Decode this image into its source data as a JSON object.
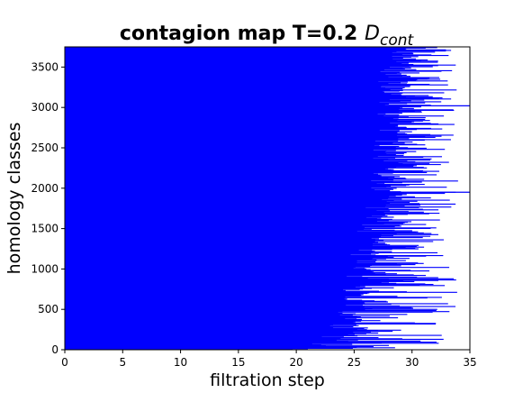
{
  "chart_data": {
    "type": "barcode",
    "title": "contagion map T=0.2",
    "title_math": "D",
    "title_math_sub": "cont",
    "xlabel": "filtration step",
    "ylabel": "homology classes",
    "xlim": [
      0,
      35
    ],
    "ylim": [
      0,
      3750
    ],
    "xticks": [
      0,
      5,
      10,
      15,
      20,
      25,
      30,
      35
    ],
    "yticks": [
      0,
      500,
      1000,
      1500,
      2000,
      2500,
      3000,
      3500
    ],
    "xtick_labels": [
      "0",
      "5",
      "10",
      "15",
      "20",
      "25",
      "30",
      "35"
    ],
    "ytick_labels": [
      "0",
      "500",
      "1000",
      "1500",
      "2000",
      "2500",
      "3000",
      "3500"
    ],
    "bar_color": "#0000ff",
    "bar_start": 0,
    "num_classes": 3750,
    "bar_end_profile": [
      {
        "class_index": 0,
        "death": 21
      },
      {
        "class_index": 150,
        "death": 24
      },
      {
        "class_index": 300,
        "death": 25
      },
      {
        "class_index": 500,
        "death": 25.5
      },
      {
        "class_index": 800,
        "death": 26
      },
      {
        "class_index": 1100,
        "death": 26.5
      },
      {
        "class_index": 1500,
        "death": 27
      },
      {
        "class_index": 1900,
        "death": 28
      },
      {
        "class_index": 2300,
        "death": 28.5
      },
      {
        "class_index": 2800,
        "death": 28.8
      },
      {
        "class_index": 3300,
        "death": 29
      },
      {
        "class_index": 3750,
        "death": 29.2
      }
    ],
    "long_bars": [
      {
        "class_index": 1950,
        "death": 35
      },
      {
        "class_index": 3020,
        "death": 35
      }
    ],
    "max_death_typical": 34
  }
}
